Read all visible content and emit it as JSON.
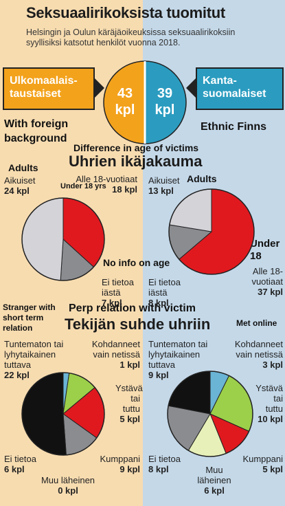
{
  "header": {
    "title": "Seksuaalirikoksista tuomitut",
    "subtitle": "Helsingin ja Oulun käräjäoikeuksissa seksuaalirikoksiin syyllisiksi katsotut henkilöt vuonna 2018."
  },
  "groups": {
    "left_badge": "Ulkomaalais-taustaiset",
    "right_badge": "Kanta-suomalaiset",
    "left_count": "43",
    "left_unit": "kpl",
    "right_count": "39",
    "right_unit": "kpl"
  },
  "annotations": {
    "foreign": "With foreign background",
    "ethnic": "Ethnic Finns",
    "diff_age": "Difference in age of victims",
    "adults_left": "Adults",
    "under18_left": "Under 18 yrs",
    "adults_right": "Adults",
    "under18_right": "Under 18",
    "noinfo": "No info on age",
    "stranger": "Stranger with short term relation",
    "perp": "Perp relation with victim",
    "met_online": "Met online"
  },
  "sections": {
    "age": "Uhrien ikäjakauma",
    "relation": "Tekijän suhde uhriin"
  },
  "colors": {
    "orange": "#f3a21c",
    "blue": "#2b9cc0",
    "red": "#e0191f",
    "lightgray": "#d3d3d8",
    "gray": "#8a8c90",
    "black": "#111111",
    "lightblue": "#6ab4d6",
    "green": "#9ccf4a",
    "palegreen": "#e6f0b8"
  },
  "chart_data": [
    {
      "type": "pie",
      "name": "age-foreign",
      "categories": [
        "Alle 18-vuotiaat",
        "Ei tietoa iästä",
        "Aikuiset"
      ],
      "values": [
        18,
        7,
        24
      ],
      "colors": [
        "#e0191f",
        "#8a8c90",
        "#d3d3d8"
      ],
      "labels": [
        {
          "text": "Alle 18-vuotiaat",
          "count": "18 kpl"
        },
        {
          "text": "Ei tietoa iästä",
          "count": "7 kpl"
        },
        {
          "text": "Aikuiset",
          "count": "24 kpl"
        }
      ]
    },
    {
      "type": "pie",
      "name": "age-finnish",
      "categories": [
        "Alle 18-vuotiaat",
        "Ei tietoa iästä",
        "Aikuiset"
      ],
      "values": [
        37,
        8,
        13
      ],
      "colors": [
        "#e0191f",
        "#8a8c90",
        "#d3d3d8"
      ],
      "labels": [
        {
          "text": "Alle 18-vuotiaat",
          "count": "37 kpl"
        },
        {
          "text": "Ei tietoa iästä",
          "count": "8 kpl"
        },
        {
          "text": "Aikuiset",
          "count": "13 kpl"
        }
      ]
    },
    {
      "type": "pie",
      "name": "relation-foreign",
      "categories": [
        "Kohdanneet vain netissä",
        "Ystävä tai tuttu",
        "Kumppani",
        "Muu läheinen",
        "Ei tietoa",
        "Tuntematon tai lyhytaikainen tuttava"
      ],
      "values": [
        1,
        5,
        9,
        0,
        6,
        22
      ],
      "colors": [
        "#6ab4d6",
        "#9ccf4a",
        "#e0191f",
        "#e6f0b8",
        "#8a8c90",
        "#111111"
      ],
      "labels": [
        {
          "text": "Kohdanneet vain netissä",
          "count": "1 kpl"
        },
        {
          "text": "Ystävä tai tuttu",
          "count": "5 kpl"
        },
        {
          "text": "Kumppani",
          "count": "9 kpl"
        },
        {
          "text": "Muu läheinen",
          "count": "0 kpl"
        },
        {
          "text": "Ei tietoa",
          "count": "6 kpl"
        },
        {
          "text": "Tuntematon tai lyhytaikainen tuttava",
          "count": "22 kpl"
        }
      ]
    },
    {
      "type": "pie",
      "name": "relation-finnish",
      "categories": [
        "Kohdanneet vain netissä",
        "Ystävä tai tuttu",
        "Kumppani",
        "Muu läheinen",
        "Ei tietoa",
        "Tuntematon tai lyhytaikainen tuttava"
      ],
      "values": [
        3,
        10,
        5,
        6,
        8,
        9
      ],
      "colors": [
        "#6ab4d6",
        "#9ccf4a",
        "#e0191f",
        "#e6f0b8",
        "#8a8c90",
        "#111111"
      ],
      "labels": [
        {
          "text": "Kohdanneet vain netissä",
          "count": "3 kpl"
        },
        {
          "text": "Ystävä tai tuttu",
          "count": "10 kpl"
        },
        {
          "text": "Kumppani",
          "count": "5 kpl"
        },
        {
          "text": "Muu läheinen",
          "count": "6 kpl"
        },
        {
          "text": "Ei tietoa",
          "count": "8 kpl"
        },
        {
          "text": "Tuntematon tai lyhytaikainen tuttava",
          "count": "9 kpl"
        }
      ]
    }
  ]
}
